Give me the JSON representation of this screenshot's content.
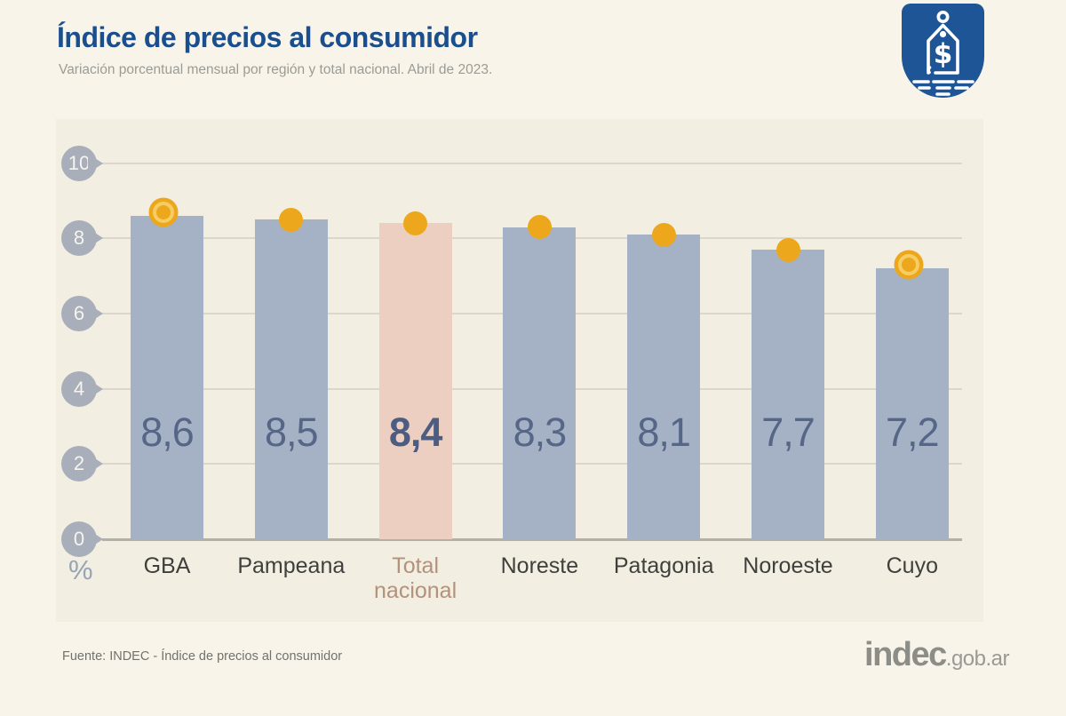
{
  "header": {
    "title": "Índice de precios al consumidor",
    "subtitle": "Variación porcentual mensual por región y total nacional. Abril de 2023."
  },
  "logo": {
    "dollar_symbol": "$"
  },
  "chart_data": {
    "type": "bar",
    "categories": [
      "GBA",
      "Pampeana",
      "Total nacional",
      "Noreste",
      "Patagonia",
      "Noroeste",
      "Cuyo"
    ],
    "values": [
      8.6,
      8.5,
      8.4,
      8.3,
      8.1,
      7.7,
      7.2
    ],
    "value_labels": [
      "8,6",
      "8,5",
      "8,4",
      "8,3",
      "8,1",
      "7,7",
      "7,2"
    ],
    "title": "Índice de precios al consumidor",
    "subtitle": "Variación porcentual mensual por región y total nacional. Abril de 2023.",
    "xlabel": "",
    "ylabel": "%",
    "ylim": [
      0,
      10
    ],
    "yticks": [
      10,
      8,
      6,
      4,
      2,
      0
    ],
    "grid": true,
    "legend": "none",
    "highlighted_category": "Total nacional",
    "ringed_dot_categories": [
      "GBA",
      "Cuyo"
    ]
  },
  "chart": {
    "unit_label": "%"
  },
  "colors": {
    "page_background": "#f8f4e9",
    "panel_background": "#f2eee1",
    "bar_blue": "#a5b1c5",
    "bar_highlight_pink": "#eccfc1",
    "dot_orange": "#eca71d",
    "dot_ring_light": "#f5cd62",
    "title_blue": "#1b4e8c",
    "value_text": "#566687",
    "tick_badge": "#a8aeba",
    "gridline": "#dbd7cb",
    "baseline": "#b3b0a7",
    "x_label": "#3f3f3d",
    "x_label_highlight": "#b3927c",
    "logo_badge_blue": "#1e5596"
  },
  "footer": {
    "source": "Fuente: INDEC - Índice de precios al consumidor",
    "brand": "indec",
    "brand_suffix": ".gob.ar"
  }
}
